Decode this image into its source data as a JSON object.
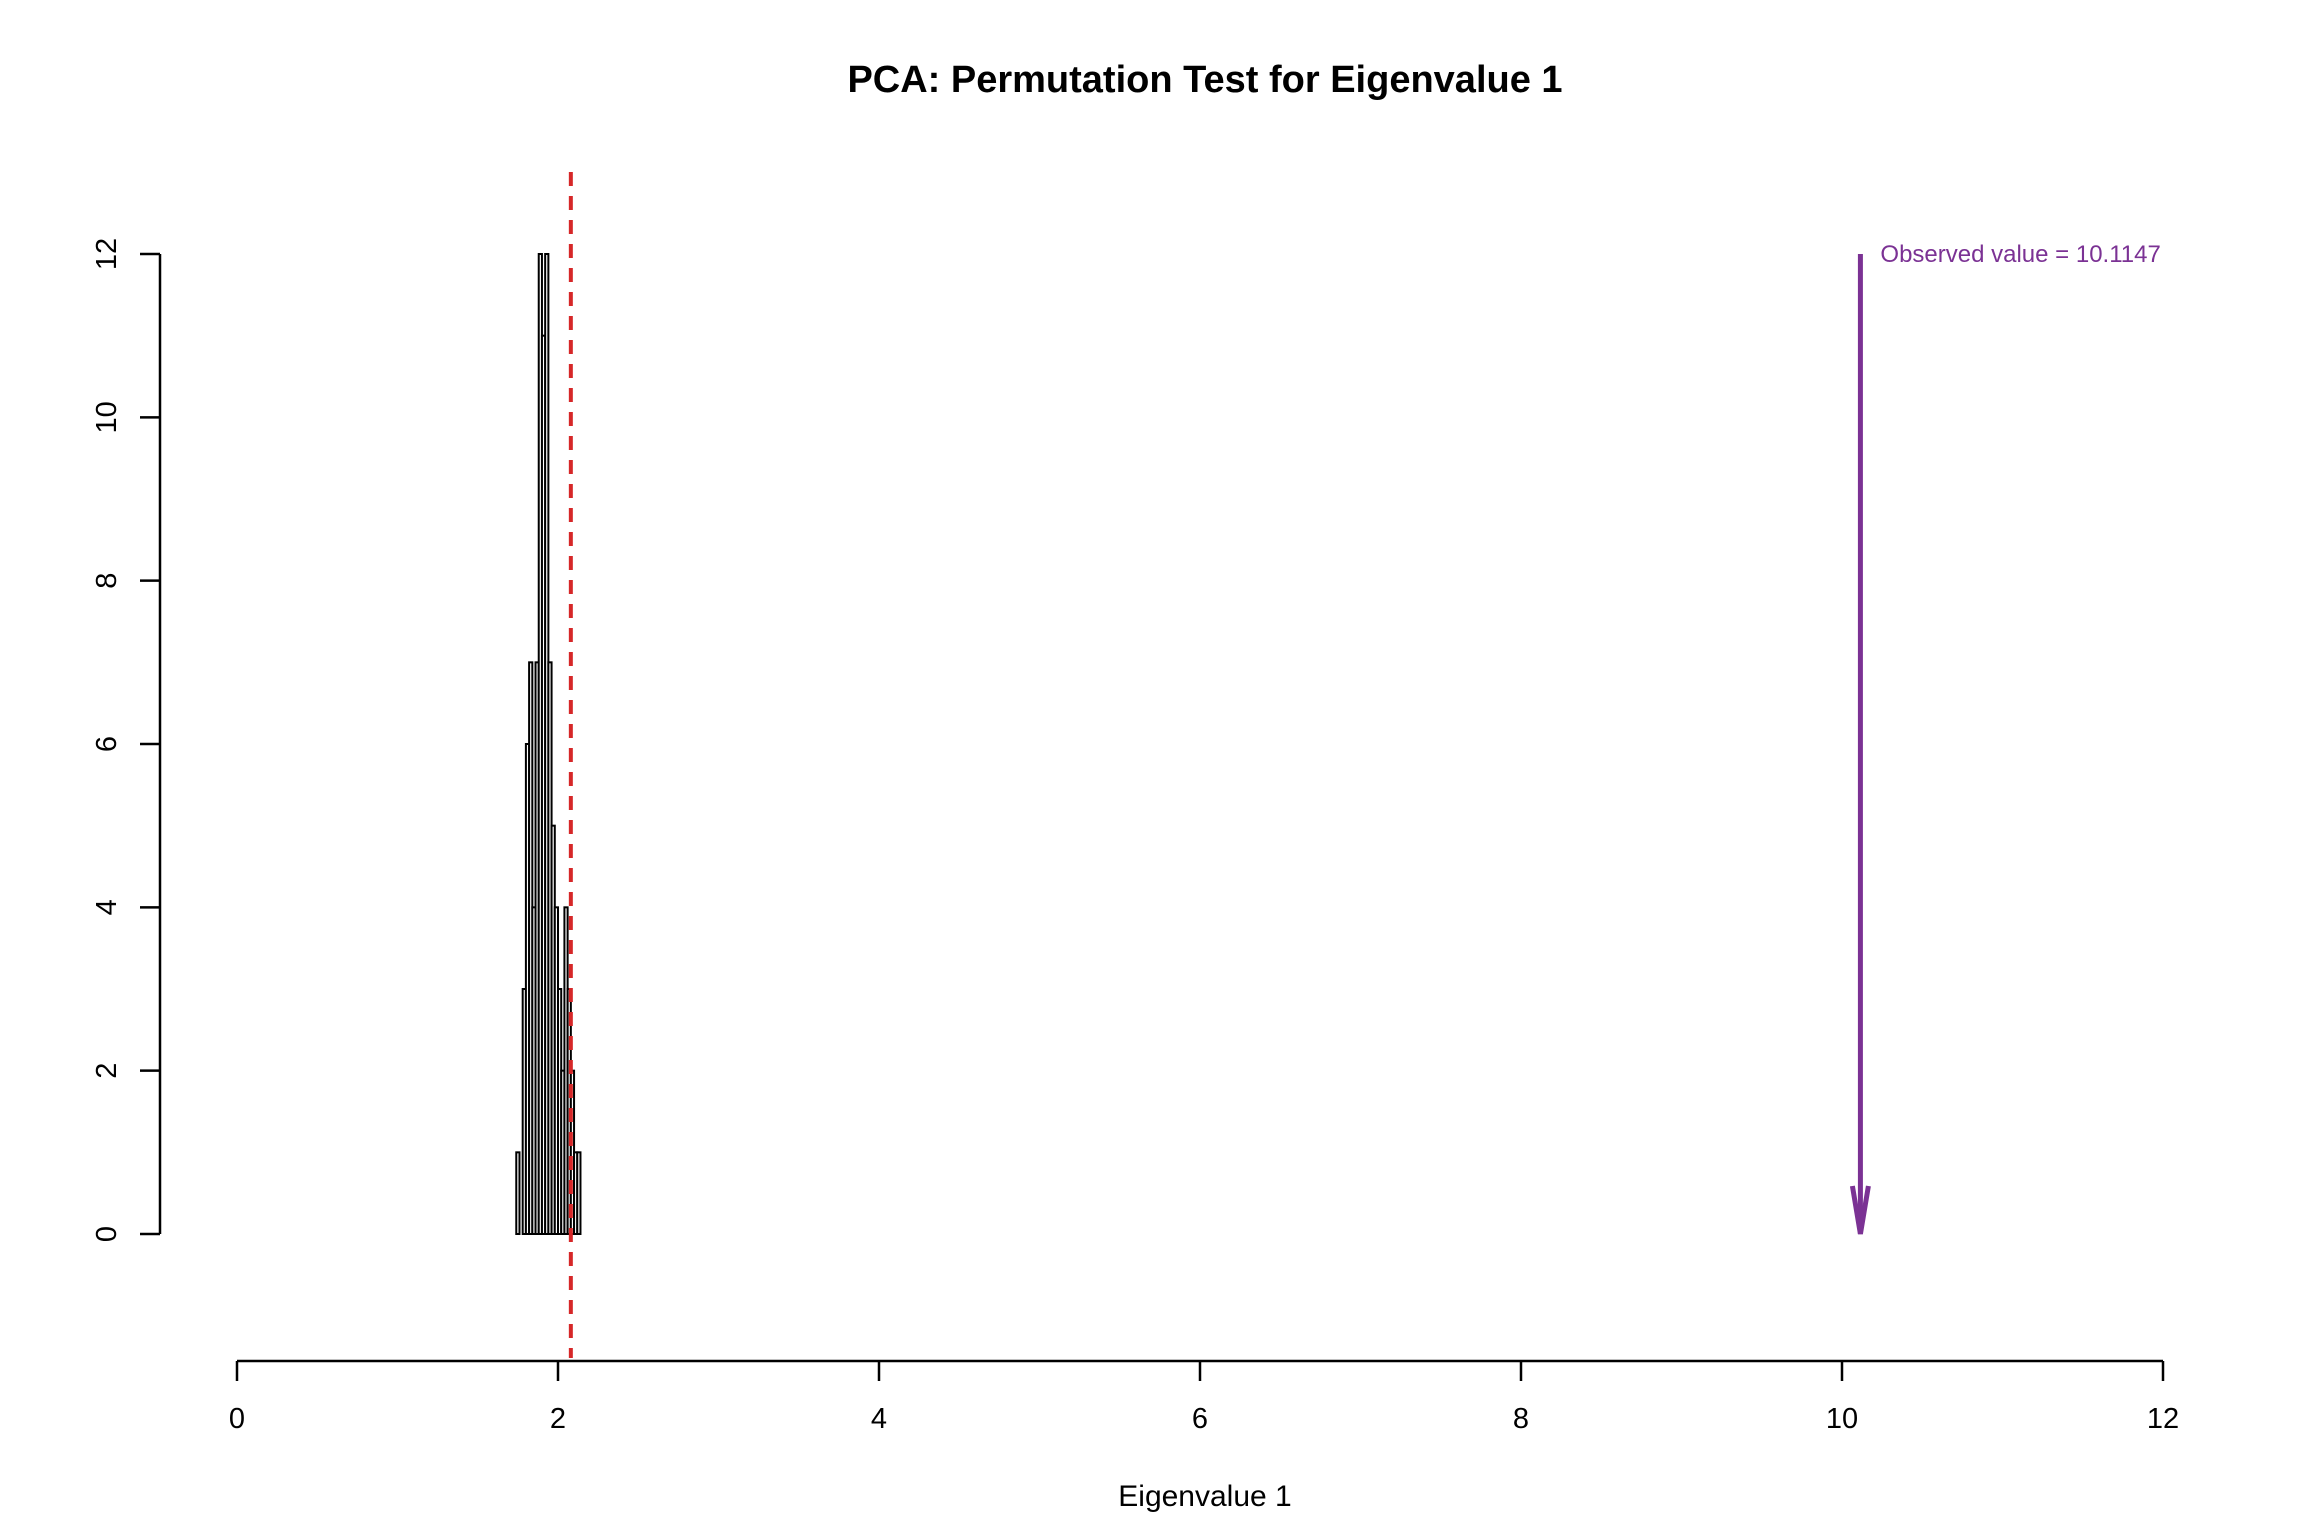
{
  "chart_data": {
    "type": "bar",
    "title": "PCA: Permutation Test for Eigenvalue 1",
    "xlabel": "Eigenvalue 1",
    "ylabel": "",
    "xlim": [
      0,
      12
    ],
    "ylim": [
      0,
      12
    ],
    "x_ticks": [
      0,
      2,
      4,
      6,
      8,
      10,
      12
    ],
    "y_ticks": [
      0,
      2,
      4,
      6,
      8,
      10,
      12
    ],
    "bins": [
      {
        "x0": 1.74,
        "x1": 1.76,
        "count": 1
      },
      {
        "x0": 1.76,
        "x1": 1.78,
        "count": 0
      },
      {
        "x0": 1.78,
        "x1": 1.8,
        "count": 3
      },
      {
        "x0": 1.8,
        "x1": 1.82,
        "count": 6
      },
      {
        "x0": 1.82,
        "x1": 1.84,
        "count": 7
      },
      {
        "x0": 1.84,
        "x1": 1.86,
        "count": 4
      },
      {
        "x0": 1.86,
        "x1": 1.88,
        "count": 7
      },
      {
        "x0": 1.88,
        "x1": 1.9,
        "count": 12
      },
      {
        "x0": 1.9,
        "x1": 1.92,
        "count": 11
      },
      {
        "x0": 1.92,
        "x1": 1.94,
        "count": 12
      },
      {
        "x0": 1.94,
        "x1": 1.96,
        "count": 7
      },
      {
        "x0": 1.96,
        "x1": 1.98,
        "count": 5
      },
      {
        "x0": 1.98,
        "x1": 2.0,
        "count": 4
      },
      {
        "x0": 2.0,
        "x1": 2.02,
        "count": 3
      },
      {
        "x0": 2.02,
        "x1": 2.04,
        "count": 2
      },
      {
        "x0": 2.04,
        "x1": 2.06,
        "count": 4
      },
      {
        "x0": 2.06,
        "x1": 2.08,
        "count": 3
      },
      {
        "x0": 2.08,
        "x1": 2.1,
        "count": 2
      },
      {
        "x0": 2.1,
        "x1": 2.12,
        "count": 1
      },
      {
        "x0": 2.12,
        "x1": 2.14,
        "count": 1
      }
    ],
    "critical_value_line": {
      "x": 2.08,
      "color": "#d62728",
      "style": "dashed"
    },
    "observed_value": {
      "x": 10.1147,
      "y_from": 12,
      "y_to": 0,
      "label": "Observed value = 10.1147",
      "color": "#7b3294"
    },
    "grid": false,
    "legend": "none"
  }
}
